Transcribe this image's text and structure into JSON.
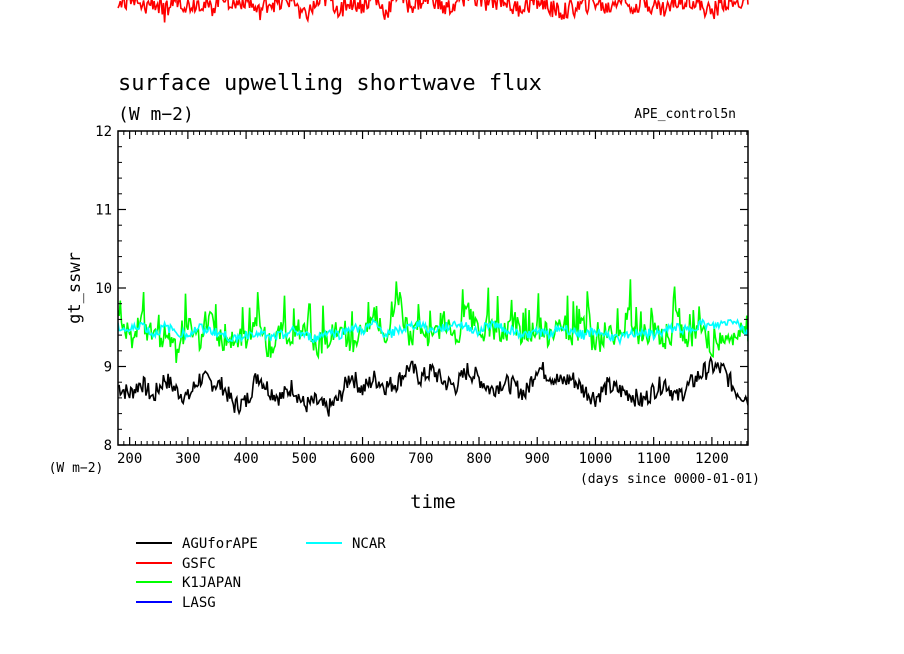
{
  "chart_data": {
    "type": "line",
    "title": "surface upwelling shortwave flux",
    "units": "(W m−2)",
    "run_label": "APE_control5n",
    "ylabel": "gt_sswr",
    "yunits": "(W m−2)",
    "xlabel": "time",
    "xunits": "(days since 0000-01-01)",
    "xlim": [
      180,
      1262
    ],
    "ylim": [
      8,
      12
    ],
    "xticks": [
      200,
      300,
      400,
      500,
      600,
      700,
      800,
      900,
      1000,
      1100,
      1200
    ],
    "yticks": [
      8,
      9,
      10,
      11,
      12
    ],
    "grid": false,
    "legend_placement": "bottom-left",
    "series": [
      {
        "name": "AGUforAPE",
        "color": "#000000",
        "x": [
          180,
          200,
          220,
          240,
          260,
          280,
          300,
          320,
          340,
          360,
          380,
          400,
          420,
          440,
          460,
          480,
          500,
          520,
          540,
          560,
          580,
          600,
          620,
          640,
          660,
          680,
          700,
          720,
          740,
          760,
          780,
          800,
          820,
          840,
          860,
          880,
          900,
          920,
          940,
          960,
          980,
          1000,
          1020,
          1040,
          1060,
          1080,
          1100,
          1120,
          1140,
          1160,
          1180,
          1200,
          1220,
          1240,
          1262
        ],
        "values": [
          8.75,
          8.65,
          8.8,
          8.6,
          8.85,
          8.7,
          8.6,
          8.85,
          8.8,
          8.75,
          8.5,
          8.55,
          8.9,
          8.7,
          8.6,
          8.75,
          8.5,
          8.55,
          8.45,
          8.6,
          8.9,
          8.7,
          8.85,
          8.75,
          8.8,
          9.0,
          8.85,
          8.95,
          8.8,
          8.75,
          8.95,
          8.85,
          8.7,
          8.8,
          8.75,
          8.65,
          9.0,
          8.9,
          8.8,
          8.85,
          8.7,
          8.6,
          8.75,
          8.7,
          8.65,
          8.55,
          8.7,
          8.8,
          8.6,
          8.75,
          8.9,
          9.0,
          8.95,
          8.7,
          8.6
        ]
      },
      {
        "name": "GSFC",
        "color": "#ff0000",
        "x": [
          180,
          200,
          220,
          240,
          260,
          280,
          300,
          320,
          340,
          360,
          380,
          400,
          420,
          440,
          460,
          480,
          500,
          520,
          540,
          560,
          580,
          600,
          620,
          640,
          660,
          680,
          700,
          720,
          740,
          760,
          780,
          800,
          820,
          840,
          860,
          880,
          900,
          920,
          940,
          960,
          980,
          1000,
          1020,
          1040,
          1060,
          1080,
          1100,
          1120,
          1140,
          1160,
          1180,
          1200,
          1220,
          1240,
          1262
        ],
        "values": [
          13.6,
          13.7,
          13.55,
          13.65,
          13.5,
          13.7,
          13.6,
          13.65,
          13.55,
          13.75,
          13.6,
          13.7,
          13.5,
          13.65,
          13.6,
          13.7,
          13.45,
          13.6,
          13.7,
          13.55,
          13.65,
          13.6,
          13.7,
          13.5,
          13.75,
          13.6,
          13.65,
          13.7,
          13.55,
          13.6,
          13.75,
          13.65,
          13.6,
          13.7,
          13.55,
          13.6,
          13.65,
          13.6,
          13.5,
          13.55,
          13.6,
          13.65,
          13.55,
          13.7,
          13.6,
          13.65,
          13.6,
          13.55,
          13.65,
          13.7,
          13.6,
          13.5,
          13.65,
          13.6,
          13.7
        ]
      },
      {
        "name": "K1JAPAN",
        "color": "#00ff00",
        "x": [
          180,
          200,
          220,
          240,
          260,
          280,
          300,
          320,
          340,
          360,
          380,
          400,
          420,
          440,
          460,
          480,
          500,
          520,
          540,
          560,
          580,
          600,
          620,
          640,
          660,
          680,
          700,
          720,
          740,
          760,
          780,
          800,
          820,
          840,
          860,
          880,
          900,
          920,
          940,
          960,
          980,
          1000,
          1020,
          1040,
          1060,
          1080,
          1100,
          1120,
          1140,
          1160,
          1180,
          1200,
          1220,
          1240,
          1262
        ],
        "values": [
          9.8,
          9.3,
          9.6,
          9.35,
          9.4,
          9.2,
          9.55,
          9.3,
          9.7,
          9.25,
          9.4,
          9.3,
          9.65,
          9.2,
          9.45,
          9.3,
          9.6,
          9.25,
          9.35,
          9.55,
          9.3,
          9.4,
          9.6,
          9.35,
          9.9,
          9.4,
          9.5,
          9.35,
          9.6,
          9.3,
          9.7,
          9.4,
          9.55,
          9.3,
          9.6,
          9.35,
          9.5,
          9.4,
          9.65,
          9.3,
          9.55,
          9.25,
          9.45,
          9.35,
          9.7,
          9.3,
          9.5,
          9.25,
          9.6,
          9.3,
          9.45,
          9.25,
          9.35,
          9.4,
          9.45
        ]
      },
      {
        "name": "LASG",
        "color": "#0000ff",
        "x": [],
        "values": []
      },
      {
        "name": "NCAR",
        "color": "#00ffff",
        "x": [
          180,
          200,
          220,
          240,
          260,
          280,
          300,
          320,
          340,
          360,
          380,
          400,
          420,
          440,
          460,
          480,
          500,
          520,
          540,
          560,
          580,
          600,
          620,
          640,
          660,
          680,
          700,
          720,
          740,
          760,
          780,
          800,
          820,
          840,
          860,
          880,
          900,
          920,
          940,
          960,
          980,
          1000,
          1020,
          1040,
          1060,
          1080,
          1100,
          1120,
          1140,
          1160,
          1180,
          1200,
          1220,
          1240,
          1262
        ],
        "values": [
          9.5,
          9.45,
          9.55,
          9.4,
          9.5,
          9.45,
          9.4,
          9.5,
          9.45,
          9.4,
          9.35,
          9.4,
          9.45,
          9.35,
          9.4,
          9.45,
          9.4,
          9.35,
          9.45,
          9.4,
          9.5,
          9.45,
          9.55,
          9.4,
          9.45,
          9.5,
          9.55,
          9.45,
          9.5,
          9.55,
          9.5,
          9.45,
          9.55,
          9.5,
          9.45,
          9.4,
          9.45,
          9.4,
          9.5,
          9.45,
          9.4,
          9.45,
          9.4,
          9.35,
          9.4,
          9.45,
          9.4,
          9.45,
          9.5,
          9.45,
          9.55,
          9.5,
          9.55,
          9.6,
          9.4
        ]
      }
    ]
  }
}
